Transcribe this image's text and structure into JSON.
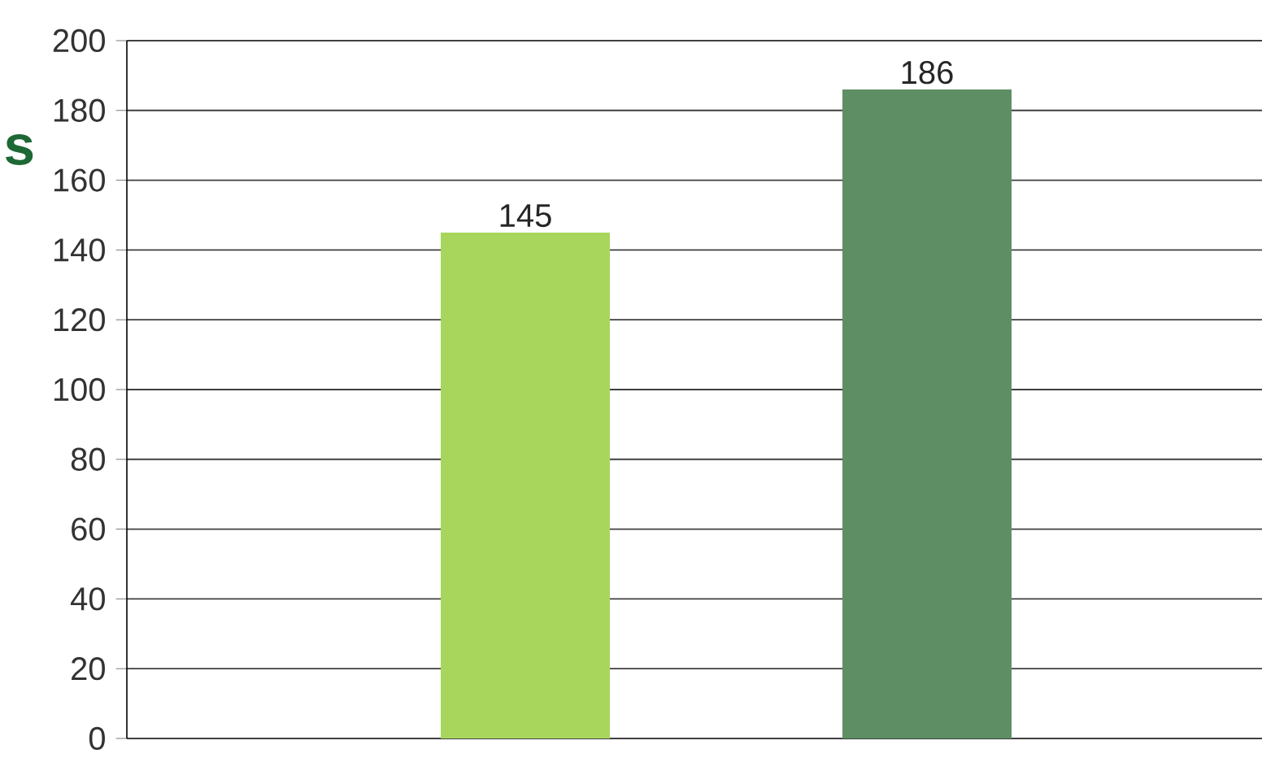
{
  "chart_data": {
    "type": "bar",
    "categories": [
      null,
      null
    ],
    "values": [
      145,
      186
    ],
    "colors": [
      "#a8d65c",
      "#5e8f64"
    ],
    "ylim": [
      0,
      200
    ],
    "yticks": [
      0,
      20,
      40,
      60,
      80,
      100,
      120,
      140,
      160,
      180,
      200
    ],
    "grid": "y",
    "data_labels": true,
    "annotations": [
      "s"
    ]
  }
}
